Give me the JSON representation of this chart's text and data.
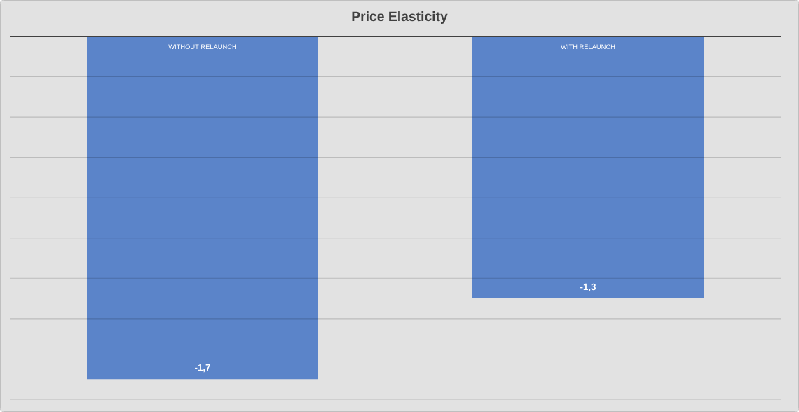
{
  "chart_data": {
    "type": "bar",
    "title": "Price Elasticity",
    "categories": [
      "WITHOUT RELAUNCH",
      "WITH RELAUNCH"
    ],
    "values": [
      -1.7,
      -1.3
    ],
    "value_labels": [
      "-1,7",
      "-1,3"
    ],
    "color": "#5b84c9",
    "ylim": [
      -1.8,
      0
    ],
    "yticks": [
      {
        "value": -1.8,
        "label": null
      },
      {
        "value": -1.6,
        "label": null
      },
      {
        "value": -1.4,
        "label": null
      },
      {
        "value": -1.2,
        "label": null
      },
      {
        "value": -1.0,
        "label": null
      },
      {
        "value": -0.8,
        "label": null
      },
      {
        "value": -0.6,
        "label": null
      },
      {
        "value": -0.4,
        "label": null
      },
      {
        "value": -0.2,
        "label": null
      },
      {
        "value": 0,
        "label": null
      }
    ],
    "grid": "y",
    "tick_labels": "x"
  }
}
